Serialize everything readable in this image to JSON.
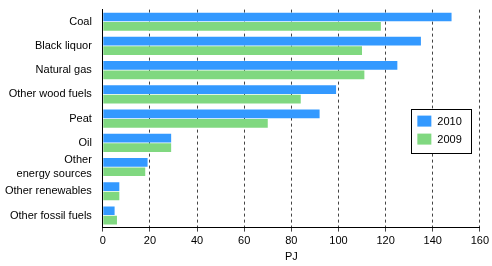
{
  "chart_data": {
    "type": "bar",
    "orientation": "horizontal",
    "xlabel": "PJ",
    "categories": [
      "Coal",
      "Black liquor",
      "Natural gas",
      "Other wood fuels",
      "Peat",
      "Oil",
      "Other\nenergy sources",
      "Other renewables",
      "Other fossil fuels"
    ],
    "series": [
      {
        "name": "2010",
        "color": "#3399ff",
        "values": [
          148,
          135,
          125,
          99,
          92,
          29,
          19,
          7,
          5
        ]
      },
      {
        "name": "2009",
        "color": "#80d880",
        "values": [
          118,
          110,
          111,
          84,
          70,
          29,
          18,
          7,
          6
        ]
      }
    ],
    "xlim": [
      0,
      160
    ],
    "xticks": [
      0,
      20,
      40,
      60,
      80,
      100,
      120,
      140,
      160
    ],
    "grid": true,
    "legend": "right"
  }
}
